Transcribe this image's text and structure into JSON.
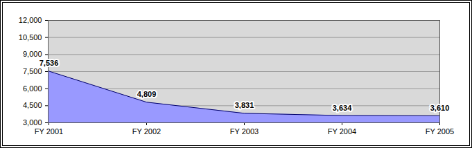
{
  "chart_data": {
    "type": "area",
    "categories": [
      "FY 2001",
      "FY 2002",
      "FY 2003",
      "FY 2004",
      "FY 2005"
    ],
    "values": [
      7536,
      4809,
      3831,
      3634,
      3610
    ],
    "value_labels": [
      "7,536",
      "4,809",
      "3,831",
      "3,634",
      "3,610"
    ],
    "data_labels": true,
    "color": "#9999ff",
    "ylim": [
      3000,
      12000
    ],
    "yticks": [
      {
        "value": 3000,
        "label": "3,000"
      },
      {
        "value": 4500,
        "label": "4,500"
      },
      {
        "value": 6000,
        "label": "6,000"
      },
      {
        "value": 7500,
        "label": "7,500"
      },
      {
        "value": 9000,
        "label": "9,000"
      },
      {
        "value": 10500,
        "label": "10,500"
      },
      {
        "value": 12000,
        "label": "12,000"
      }
    ],
    "grid": true
  }
}
